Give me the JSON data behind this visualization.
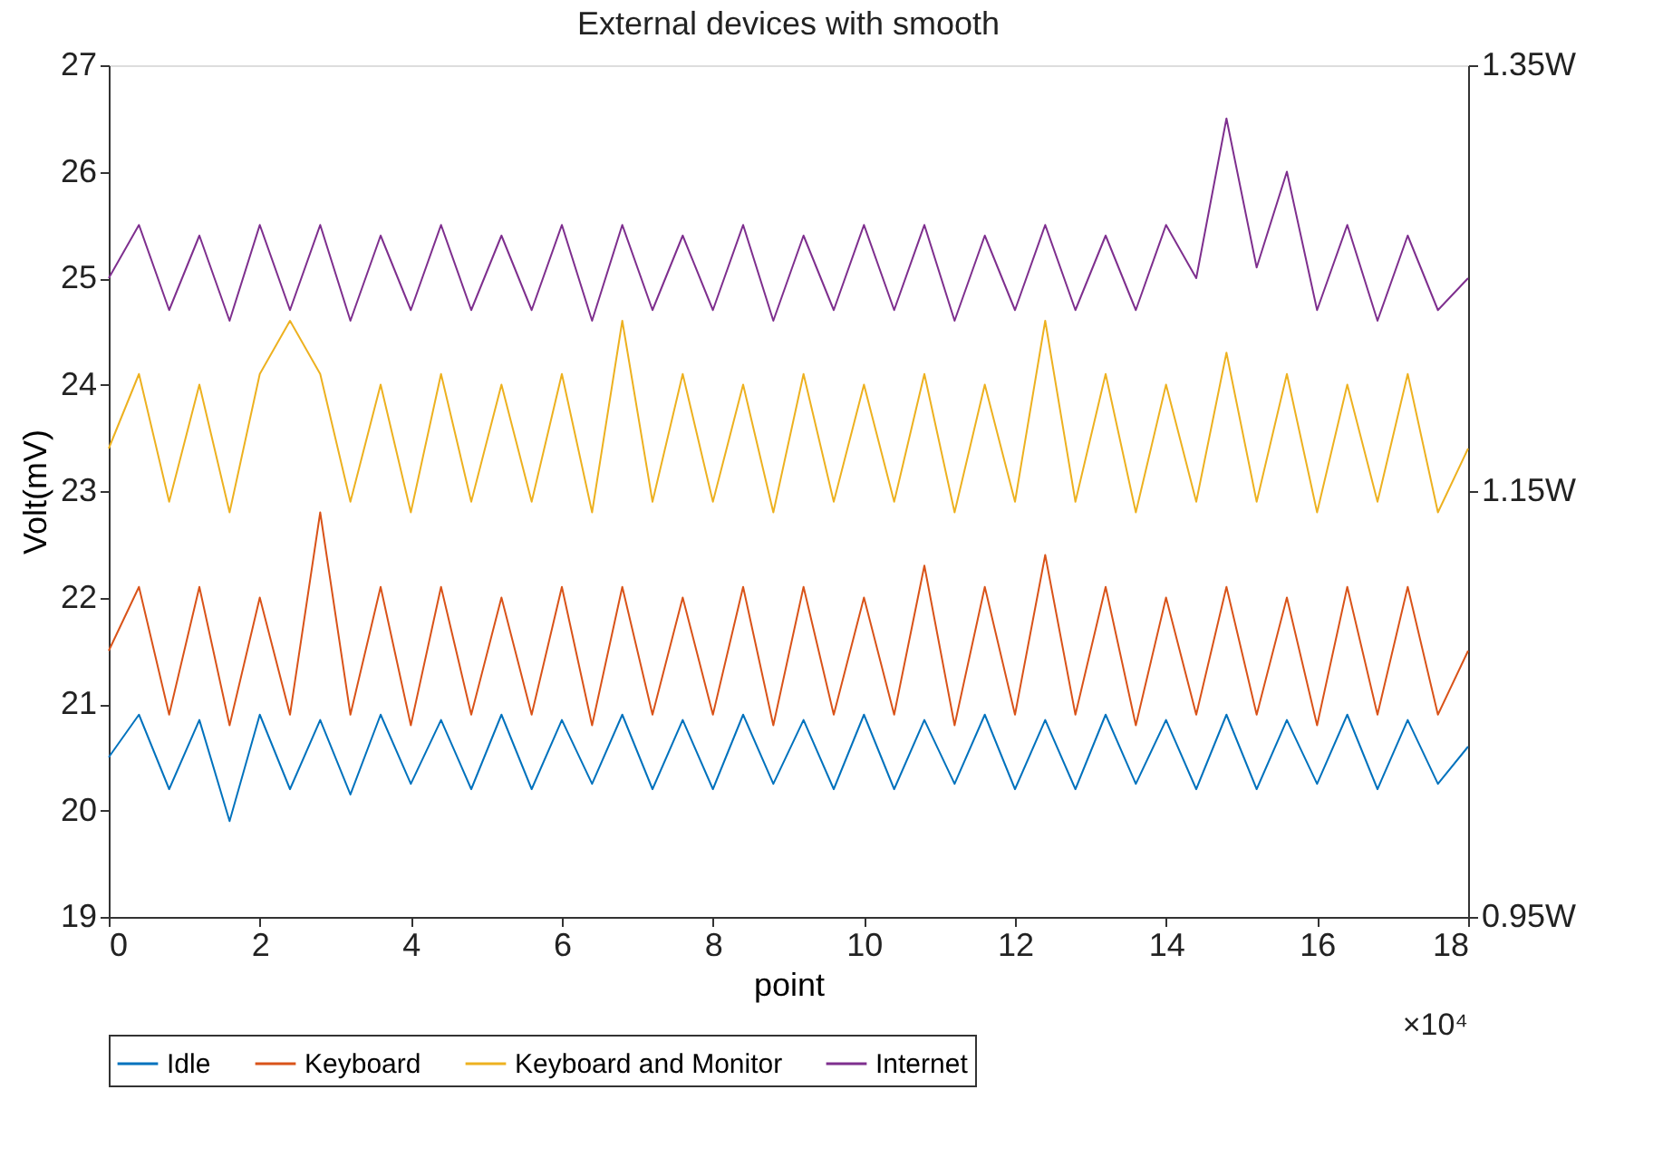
{
  "chart_data": {
    "type": "line",
    "title": "External devices with smooth",
    "xlabel": "point",
    "ylabel": "Volt(mV)",
    "x": [
      0,
      0.4,
      0.8,
      1.2,
      1.6,
      2,
      2.4,
      2.8,
      3.2,
      3.6,
      4,
      4.4,
      4.8,
      5.2,
      5.6,
      6,
      6.4,
      6.8,
      7.2,
      7.6,
      8,
      8.4,
      8.8,
      9.2,
      9.6,
      10,
      10.4,
      10.8,
      11.2,
      11.6,
      12,
      12.4,
      12.8,
      13.2,
      13.6,
      14,
      14.4,
      14.8,
      15.2,
      15.6,
      16,
      16.4,
      16.8,
      17.2,
      17.6,
      18
    ],
    "series": [
      {
        "name": "Idle",
        "color": "#0072bd",
        "values": [
          20.5,
          20.9,
          20.2,
          20.85,
          19.9,
          20.9,
          20.2,
          20.85,
          20.15,
          20.9,
          20.25,
          20.85,
          20.2,
          20.9,
          20.2,
          20.85,
          20.25,
          20.9,
          20.2,
          20.85,
          20.2,
          20.9,
          20.25,
          20.85,
          20.2,
          20.9,
          20.2,
          20.85,
          20.25,
          20.9,
          20.2,
          20.85,
          20.2,
          20.9,
          20.25,
          20.85,
          20.2,
          20.9,
          20.2,
          20.85,
          20.25,
          20.9,
          20.2,
          20.85,
          20.25,
          20.6
        ]
      },
      {
        "name": "Keyboard",
        "color": "#d95319",
        "values": [
          21.5,
          22.1,
          20.9,
          22.1,
          20.8,
          22.0,
          20.9,
          22.8,
          20.9,
          22.1,
          20.8,
          22.1,
          20.9,
          22.0,
          20.9,
          22.1,
          20.8,
          22.1,
          20.9,
          22.0,
          20.9,
          22.1,
          20.8,
          22.1,
          20.9,
          22.0,
          20.9,
          22.3,
          20.8,
          22.1,
          20.9,
          22.4,
          20.9,
          22.1,
          20.8,
          22.0,
          20.9,
          22.1,
          20.9,
          22.0,
          20.8,
          22.1,
          20.9,
          22.1,
          20.9,
          21.5
        ]
      },
      {
        "name": "Keyboard and Monitor",
        "color": "#edb120",
        "values": [
          23.4,
          24.1,
          22.9,
          24.0,
          22.8,
          24.1,
          24.6,
          24.1,
          22.9,
          24.0,
          22.8,
          24.1,
          22.9,
          24.0,
          22.9,
          24.1,
          22.8,
          24.6,
          22.9,
          24.1,
          22.9,
          24.0,
          22.8,
          24.1,
          22.9,
          24.0,
          22.9,
          24.1,
          22.8,
          24.0,
          22.9,
          24.6,
          22.9,
          24.1,
          22.8,
          24.0,
          22.9,
          24.3,
          22.9,
          24.1,
          22.8,
          24.0,
          22.9,
          24.1,
          22.8,
          23.4
        ]
      },
      {
        "name": "Internet",
        "color": "#7e2f8e",
        "values": [
          25.0,
          25.5,
          24.7,
          25.4,
          24.6,
          25.5,
          24.7,
          25.5,
          24.6,
          25.4,
          24.7,
          25.5,
          24.7,
          25.4,
          24.7,
          25.5,
          24.6,
          25.5,
          24.7,
          25.4,
          24.7,
          25.5,
          24.6,
          25.4,
          24.7,
          25.5,
          24.7,
          25.5,
          24.6,
          25.4,
          24.7,
          25.5,
          24.7,
          25.4,
          24.7,
          25.5,
          25.0,
          26.5,
          25.1,
          26.0,
          24.7,
          25.5,
          24.6,
          25.4,
          24.7,
          25.0
        ]
      }
    ],
    "xlim": [
      0,
      18
    ],
    "xticks": [
      0,
      2,
      4,
      6,
      8,
      10,
      12,
      14,
      16,
      18
    ],
    "ylim": [
      19,
      27
    ],
    "yticks": [
      19,
      20,
      21,
      22,
      23,
      24,
      25,
      26,
      27
    ],
    "y2lim": [
      0.95,
      1.35
    ],
    "y2ticks": [
      {
        "value": 0.95,
        "label": "0.95W"
      },
      {
        "value": 1.15,
        "label": "1.15W"
      },
      {
        "value": 1.35,
        "label": "1.35W"
      }
    ],
    "annotations": [
      "×10⁴"
    ],
    "legend": "bottom",
    "grid": false,
    "marker": "none",
    "line_style": "solid"
  }
}
